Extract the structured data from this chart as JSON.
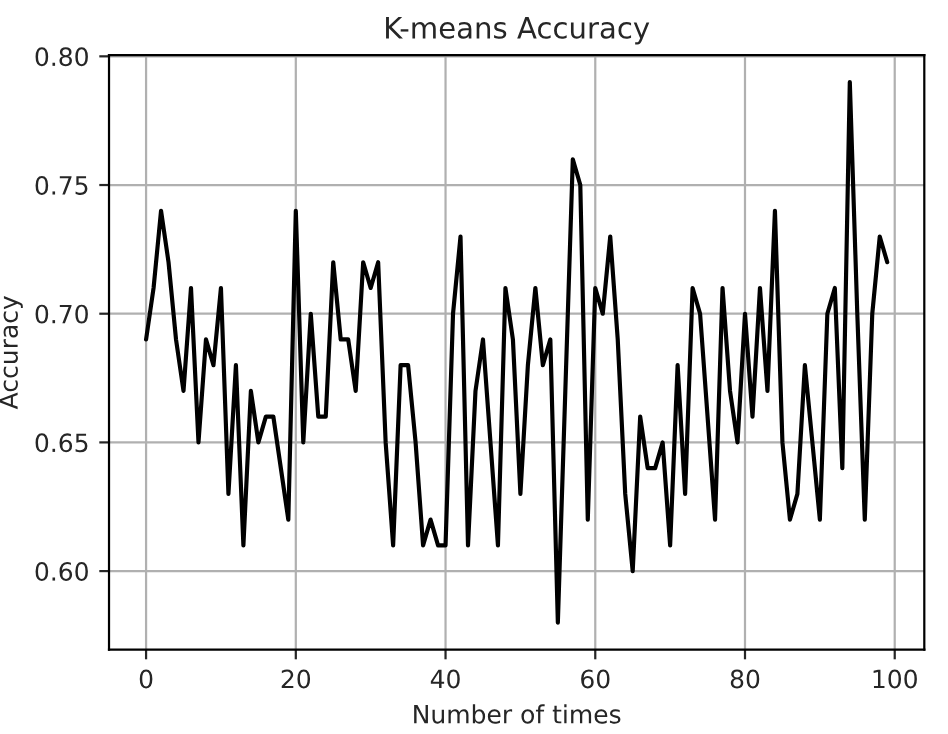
{
  "chart_data": {
    "type": "line",
    "title": "K-means Accuracy",
    "xlabel": "Number of times",
    "ylabel": "Accuracy",
    "x": [
      0,
      1,
      2,
      3,
      4,
      5,
      6,
      7,
      8,
      9,
      10,
      11,
      12,
      13,
      14,
      15,
      16,
      17,
      18,
      19,
      20,
      21,
      22,
      23,
      24,
      25,
      26,
      27,
      28,
      29,
      30,
      31,
      32,
      33,
      34,
      35,
      36,
      37,
      38,
      39,
      40,
      41,
      42,
      43,
      44,
      45,
      46,
      47,
      48,
      49,
      50,
      51,
      52,
      53,
      54,
      55,
      56,
      57,
      58,
      59,
      60,
      61,
      62,
      63,
      64,
      65,
      66,
      67,
      68,
      69,
      70,
      71,
      72,
      73,
      74,
      75,
      76,
      77,
      78,
      79,
      80,
      81,
      82,
      83,
      84,
      85,
      86,
      87,
      88,
      89,
      90,
      91,
      92,
      93,
      94,
      95,
      96,
      97,
      98,
      99
    ],
    "series": [
      {
        "color": "#000000",
        "values": [
          0.69,
          0.71,
          0.74,
          0.72,
          0.69,
          0.67,
          0.71,
          0.65,
          0.69,
          0.68,
          0.71,
          0.63,
          0.68,
          0.61,
          0.67,
          0.65,
          0.66,
          0.66,
          0.64,
          0.62,
          0.74,
          0.65,
          0.7,
          0.66,
          0.66,
          0.72,
          0.69,
          0.69,
          0.67,
          0.72,
          0.71,
          0.72,
          0.65,
          0.61,
          0.68,
          0.68,
          0.65,
          0.61,
          0.62,
          0.61,
          0.61,
          0.7,
          0.73,
          0.61,
          0.67,
          0.69,
          0.65,
          0.61,
          0.71,
          0.69,
          0.63,
          0.68,
          0.71,
          0.68,
          0.69,
          0.58,
          0.67,
          0.76,
          0.75,
          0.62,
          0.71,
          0.7,
          0.73,
          0.69,
          0.63,
          0.6,
          0.66,
          0.64,
          0.64,
          0.65,
          0.61,
          0.68,
          0.63,
          0.71,
          0.7,
          0.66,
          0.62,
          0.71,
          0.67,
          0.65,
          0.7,
          0.66,
          0.71,
          0.67,
          0.74,
          0.65,
          0.62,
          0.63,
          0.68,
          0.65,
          0.62,
          0.7,
          0.71,
          0.64,
          0.79,
          0.7,
          0.62,
          0.7,
          0.73,
          0.72
        ]
      }
    ],
    "xlim": [
      -4.95,
      103.95
    ],
    "xticks": [
      0,
      20,
      40,
      60,
      80,
      100
    ],
    "ylim": [
      0.5695,
      0.8005
    ],
    "yticks": [
      {
        "value": 0.6,
        "label": "0.60"
      },
      {
        "value": 0.65,
        "label": "0.65"
      },
      {
        "value": 0.7,
        "label": "0.70"
      },
      {
        "value": 0.75,
        "label": "0.75"
      },
      {
        "value": 0.8,
        "label": "0.80"
      }
    ],
    "grid": true,
    "marker": "none",
    "line_style": "solid"
  }
}
